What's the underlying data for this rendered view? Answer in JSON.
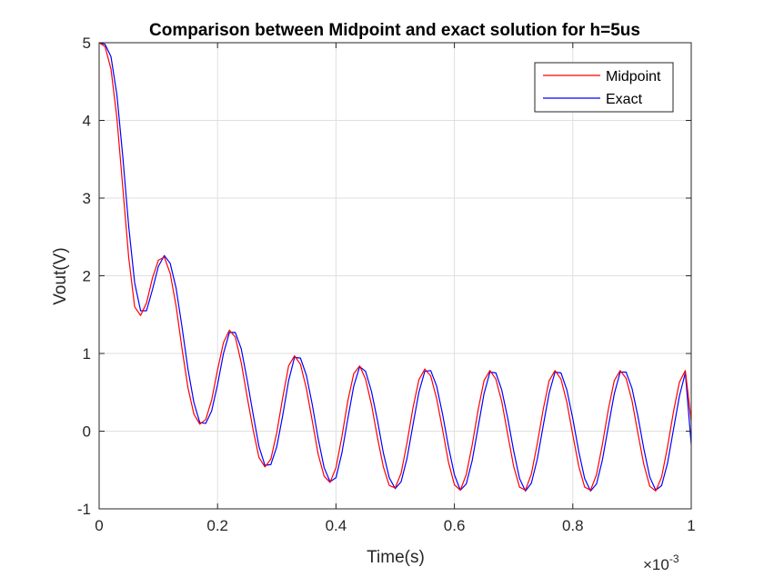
{
  "colors": {
    "background": "#ffffff",
    "axes_box": "#262626",
    "grid": "#dfdfdf",
    "midpoint": "#ff0000",
    "exact": "#0000ff"
  },
  "chart_data": {
    "type": "line",
    "title": "Comparison between Midpoint and exact solution for h=5us",
    "xlabel": "Time(s)",
    "ylabel": "Vout(V)",
    "x_exponent_base": "×10",
    "x_exponent": "-3",
    "xlim": [
      0,
      0.001
    ],
    "ylim": [
      -1,
      5
    ],
    "x_ticks": [
      0,
      0.0002,
      0.0004,
      0.0006,
      0.0008,
      0.001
    ],
    "x_tick_labels": [
      "0",
      "0.2",
      "0.4",
      "0.6",
      "0.8",
      "1"
    ],
    "y_ticks": [
      -1,
      0,
      1,
      2,
      3,
      4,
      5
    ],
    "y_tick_labels": [
      "-1",
      "0",
      "1",
      "2",
      "3",
      "4",
      "5"
    ],
    "grid": true,
    "legend_position": "top-right",
    "x": [
      0,
      1e-05,
      2e-05,
      3e-05,
      4e-05,
      5e-05,
      6e-05,
      7e-05,
      8e-05,
      9e-05,
      0.0001,
      0.00011,
      0.00012,
      0.00013,
      0.00014,
      0.00015,
      0.00016,
      0.00017,
      0.00018,
      0.00019,
      0.0002,
      0.00021,
      0.00022,
      0.00023,
      0.00024,
      0.00025,
      0.00026,
      0.00027,
      0.00028,
      0.00029,
      0.0003,
      0.00031,
      0.00032,
      0.00033,
      0.00034,
      0.00035,
      0.00036,
      0.00037,
      0.00038,
      0.00039,
      0.0004,
      0.00041,
      0.00042,
      0.00043,
      0.00044,
      0.00045,
      0.00046,
      0.00047,
      0.00048,
      0.00049,
      0.0005,
      0.00051,
      0.00052,
      0.00053,
      0.00054,
      0.00055,
      0.00056,
      0.00057,
      0.00058,
      0.00059,
      0.0006,
      0.00061,
      0.00062,
      0.00063,
      0.00064,
      0.00065,
      0.00066,
      0.00067,
      0.00068,
      0.00069,
      0.0007,
      0.00071,
      0.00072,
      0.00073,
      0.00074,
      0.00075,
      0.00076,
      0.00077,
      0.00078,
      0.00079,
      0.0008,
      0.00081,
      0.00082,
      0.00083,
      0.00084,
      0.00085,
      0.00086,
      0.00087,
      0.00088,
      0.00089,
      0.0009,
      0.00091,
      0.00092,
      0.00093,
      0.00094,
      0.00095,
      0.00096,
      0.00097,
      0.00098,
      0.00099,
      0.001
    ],
    "series": [
      {
        "name": "Midpoint",
        "color": "#ff0000",
        "values": [
          5.0,
          4.95,
          4.66,
          4.03,
          3.13,
          2.23,
          1.6,
          1.49,
          1.65,
          1.97,
          2.2,
          2.24,
          2.03,
          1.61,
          1.06,
          0.56,
          0.22,
          0.09,
          0.15,
          0.4,
          0.79,
          1.14,
          1.3,
          1.21,
          0.88,
          0.44,
          0.02,
          -0.34,
          -0.46,
          -0.36,
          -0.02,
          0.43,
          0.84,
          0.97,
          0.86,
          0.55,
          0.13,
          -0.3,
          -0.58,
          -0.66,
          -0.47,
          -0.07,
          0.39,
          0.74,
          0.84,
          0.67,
          0.34,
          -0.08,
          -0.46,
          -0.7,
          -0.73,
          -0.54,
          -0.15,
          0.3,
          0.66,
          0.8,
          0.71,
          0.42,
          0.02,
          -0.4,
          -0.69,
          -0.76,
          -0.56,
          -0.18,
          0.27,
          0.65,
          0.78,
          0.67,
          0.38,
          -0.04,
          -0.45,
          -0.72,
          -0.76,
          -0.55,
          -0.16,
          0.28,
          0.65,
          0.78,
          0.67,
          0.37,
          -0.05,
          -0.45,
          -0.72,
          -0.76,
          -0.56,
          -0.17,
          0.28,
          0.65,
          0.78,
          0.68,
          0.39,
          -0.03,
          -0.43,
          -0.71,
          -0.77,
          -0.59,
          -0.2,
          0.25,
          0.63,
          0.78,
          0.13
        ]
      },
      {
        "name": "Exact",
        "color": "#0000ff",
        "values": [
          5.0,
          4.98,
          4.82,
          4.33,
          3.53,
          2.63,
          1.91,
          1.55,
          1.55,
          1.82,
          2.12,
          2.26,
          2.16,
          1.84,
          1.34,
          0.8,
          0.37,
          0.11,
          0.1,
          0.26,
          0.6,
          1.0,
          1.27,
          1.27,
          1.06,
          0.66,
          0.22,
          -0.2,
          -0.44,
          -0.43,
          -0.2,
          0.2,
          0.65,
          0.95,
          0.94,
          0.72,
          0.34,
          -0.1,
          -0.47,
          -0.65,
          -0.6,
          -0.28,
          0.16,
          0.58,
          0.83,
          0.77,
          0.51,
          0.14,
          -0.28,
          -0.6,
          -0.74,
          -0.65,
          -0.35,
          0.08,
          0.5,
          0.77,
          0.78,
          0.58,
          0.22,
          -0.2,
          -0.56,
          -0.76,
          -0.68,
          -0.38,
          0.05,
          0.48,
          0.76,
          0.75,
          0.53,
          0.17,
          -0.25,
          -0.61,
          -0.77,
          -0.67,
          -0.36,
          0.07,
          0.49,
          0.76,
          0.75,
          0.53,
          0.16,
          -0.26,
          -0.61,
          -0.77,
          -0.68,
          -0.37,
          0.06,
          0.48,
          0.76,
          0.76,
          0.55,
          0.19,
          -0.23,
          -0.59,
          -0.76,
          -0.7,
          -0.41,
          0.02,
          0.45,
          0.75,
          -0.17
        ]
      }
    ]
  }
}
